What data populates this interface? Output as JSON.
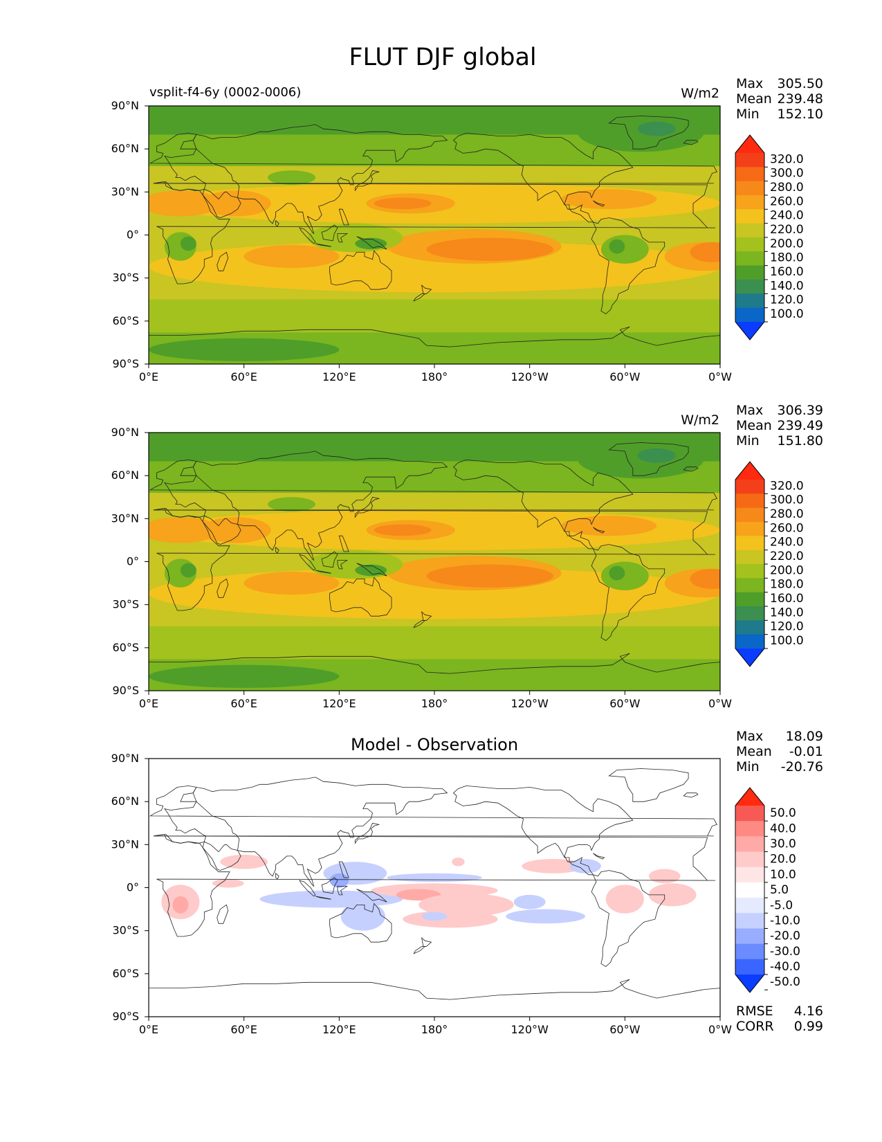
{
  "figure": {
    "title": "FLUT DJF global"
  },
  "colors": {
    "abs_levels": [
      "#0a3dff",
      "#0a67c8",
      "#1f7a8c",
      "#3b8f4f",
      "#4f9e2a",
      "#7bb51f",
      "#a3c21d",
      "#c9c523",
      "#f4c21d",
      "#f7a31b",
      "#f7881a",
      "#f66a15",
      "#f4401a",
      "#ff2a10"
    ],
    "diff_levels": [
      "#0a3dff",
      "#3a66ff",
      "#6a8cff",
      "#98adff",
      "#c6d0ff",
      "#e6eaff",
      "#ffffff",
      "#ffe6e6",
      "#ffcaca",
      "#ffaaa6",
      "#ff8a84",
      "#f75a55",
      "#ff2a10"
    ]
  },
  "panels": [
    {
      "id": "test",
      "subtitle_left": "vsplit-f4-6y (0002-0006)",
      "title_center": "",
      "units": "W/m2",
      "stats": [
        {
          "label": "Max",
          "value": "305.50"
        },
        {
          "label": "Mean",
          "value": "239.48"
        },
        {
          "label": "Min",
          "value": "152.10"
        }
      ],
      "colorbar_ticks": [
        "320.0",
        "300.0",
        "280.0",
        "260.0",
        "240.0",
        "220.0",
        "200.0",
        "180.0",
        "160.0",
        "140.0",
        "120.0",
        "100.0"
      ],
      "footer": []
    },
    {
      "id": "reference",
      "subtitle_left": "",
      "title_center": "",
      "units": "W/m2",
      "stats": [
        {
          "label": "Max",
          "value": "306.39"
        },
        {
          "label": "Mean",
          "value": "239.49"
        },
        {
          "label": "Min",
          "value": "151.80"
        }
      ],
      "colorbar_ticks": [
        "320.0",
        "300.0",
        "280.0",
        "260.0",
        "240.0",
        "220.0",
        "200.0",
        "180.0",
        "160.0",
        "140.0",
        "120.0",
        "100.0"
      ],
      "footer": []
    },
    {
      "id": "difference",
      "subtitle_left": "",
      "title_center": "Model - Observation",
      "units": "",
      "stats": [
        {
          "label": "Max",
          "value": "18.09"
        },
        {
          "label": "Mean",
          "value": "-0.01"
        },
        {
          "label": "Min",
          "value": "-20.76"
        }
      ],
      "colorbar_ticks": [
        "50.0",
        "40.0",
        "30.0",
        "20.0",
        "10.0",
        "5.0",
        "-5.0",
        "-10.0",
        "-20.0",
        "-30.0",
        "-40.0",
        "-50.0"
      ],
      "footer": [
        {
          "label": "RMSE",
          "value": "4.16"
        },
        {
          "label": "CORR",
          "value": "0.99"
        }
      ]
    }
  ],
  "chart_data": [
    {
      "type": "heatmap",
      "title": "vsplit-f4-6y (0002-0006)",
      "units": "W/m2",
      "x_ticks": [
        "0°E",
        "60°E",
        "120°E",
        "180°",
        "120°W",
        "60°W",
        "0°W"
      ],
      "y_ticks": [
        "90°N",
        "60°N",
        "30°N",
        "0°",
        "30°S",
        "60°S",
        "90°S"
      ],
      "xlim": [
        0,
        360
      ],
      "ylim": [
        -90,
        90
      ],
      "max": 305.5,
      "mean": 239.48,
      "min": 152.1,
      "levels": [
        100,
        120,
        140,
        160,
        180,
        200,
        220,
        240,
        260,
        280,
        300,
        320
      ]
    },
    {
      "type": "heatmap",
      "title": "",
      "units": "W/m2",
      "x_ticks": [
        "0°E",
        "60°E",
        "120°E",
        "180°",
        "120°W",
        "60°W",
        "0°W"
      ],
      "y_ticks": [
        "90°N",
        "60°N",
        "30°N",
        "0°",
        "30°S",
        "60°S",
        "90°S"
      ],
      "xlim": [
        0,
        360
      ],
      "ylim": [
        -90,
        90
      ],
      "max": 306.39,
      "mean": 239.49,
      "min": 151.8,
      "levels": [
        100,
        120,
        140,
        160,
        180,
        200,
        220,
        240,
        260,
        280,
        300,
        320
      ]
    },
    {
      "type": "heatmap",
      "title": "Model - Observation",
      "units": "",
      "x_ticks": [
        "0°E",
        "60°E",
        "120°E",
        "180°",
        "120°W",
        "60°W",
        "0°W"
      ],
      "y_ticks": [
        "90°N",
        "60°N",
        "30°N",
        "0°",
        "30°S",
        "60°S",
        "90°S"
      ],
      "xlim": [
        0,
        360
      ],
      "ylim": [
        -90,
        90
      ],
      "max": 18.09,
      "mean": -0.01,
      "min": -20.76,
      "rmse": 4.16,
      "corr": 0.99,
      "levels": [
        -50,
        -40,
        -30,
        -20,
        -10,
        -5,
        5,
        10,
        20,
        30,
        40,
        50
      ]
    }
  ]
}
